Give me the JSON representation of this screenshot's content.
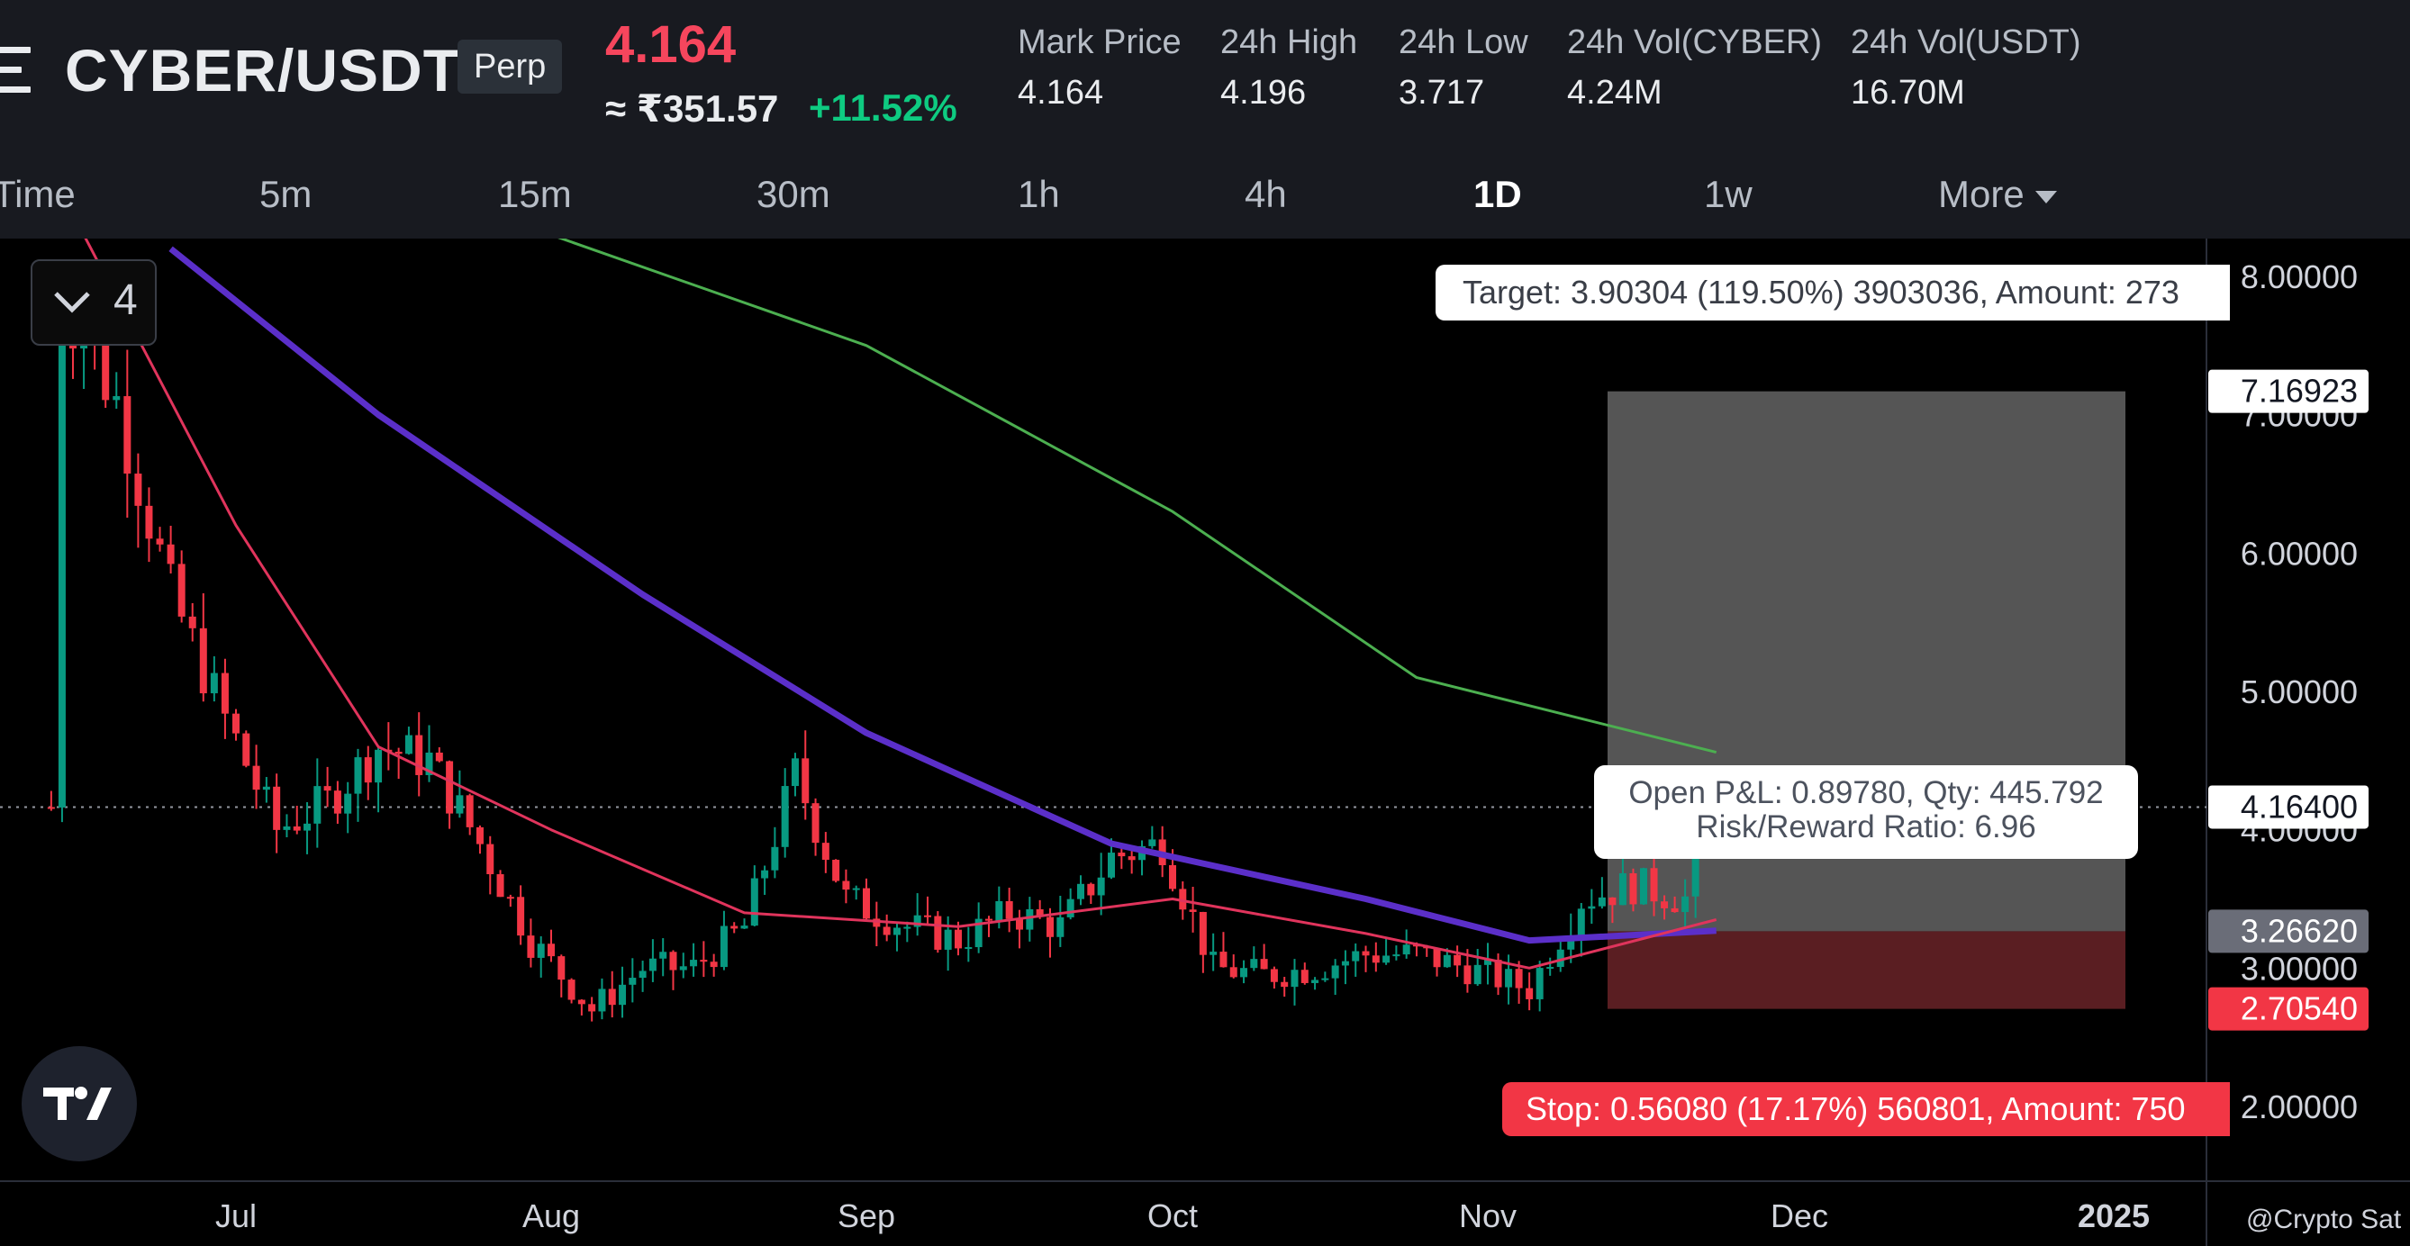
{
  "header": {
    "pair": "CYBER/USDT",
    "contract_type": "Perp",
    "last_price": "4.164",
    "inr_price": "≈ ₹351.57",
    "change_pct": "+11.52%",
    "stats": [
      {
        "label": "Mark Price",
        "value": "4.164"
      },
      {
        "label": "24h High",
        "value": "4.196"
      },
      {
        "label": "24h Low",
        "value": "3.717"
      },
      {
        "label": "24h Vol(CYBER)",
        "value": "4.24M"
      },
      {
        "label": "24h Vol(USDT)",
        "value": "16.70M"
      }
    ]
  },
  "timeframes": {
    "items": [
      "Time",
      "5m",
      "15m",
      "30m",
      "1h",
      "4h",
      "1D",
      "1w",
      "More"
    ],
    "active": "1D"
  },
  "chart": {
    "indicator_count": "4",
    "price_axis": [
      "8.00000",
      "7.00000",
      "6.00000",
      "5.00000",
      "4.00000",
      "3.00000",
      "2.00000"
    ],
    "time_axis": [
      "Jul",
      "Aug",
      "Sep",
      "Oct",
      "Nov",
      "Dec",
      "2025"
    ],
    "tags": {
      "target": "7.16923",
      "last": "4.16400",
      "entry": "3.26620",
      "stop": "2.70540"
    },
    "target_label": "Target: 3.90304 (119.50%) 3903036, Amount: 273",
    "stop_label": "Stop: 0.56080 (17.17%) 560801, Amount: 750",
    "pnl_line1": "Open P&L: 0.89780, Qty: 445.792",
    "pnl_line2": "Risk/Reward Ratio: 6.96",
    "watermark": "@Crypto Sat"
  },
  "colors": {
    "up": "#089981",
    "down": "#f23645",
    "ma_short": "#e0345c",
    "ma_mid": "#5b2fc9",
    "ma_long": "#4caf50",
    "reward_zone": "#5a5a5a",
    "risk_zone": "#5a1e22"
  },
  "chart_data": {
    "type": "candlestick",
    "title": "CYBER/USDT Perp 1D",
    "ylim": [
      1.6,
      8.4
    ],
    "x_ticks": [
      "Jul",
      "Aug",
      "Sep",
      "Oct",
      "Nov",
      "Dec",
      "2025"
    ],
    "x_range": [
      "2024-06-14",
      "2025-01-05"
    ],
    "series": [
      {
        "name": "price",
        "approx_closes": [
          {
            "date": "2024-06-15",
            "close": 7.9
          },
          {
            "date": "2024-06-20",
            "close": 7.1
          },
          {
            "date": "2024-06-25",
            "close": 5.7
          },
          {
            "date": "2024-06-30",
            "close": 4.8
          },
          {
            "date": "2024-07-05",
            "close": 4.0
          },
          {
            "date": "2024-07-10",
            "close": 4.2
          },
          {
            "date": "2024-07-15",
            "close": 4.6
          },
          {
            "date": "2024-07-20",
            "close": 4.5
          },
          {
            "date": "2024-07-25",
            "close": 3.9
          },
          {
            "date": "2024-07-30",
            "close": 3.2
          },
          {
            "date": "2024-08-05",
            "close": 2.7
          },
          {
            "date": "2024-08-10",
            "close": 3.0
          },
          {
            "date": "2024-08-15",
            "close": 3.0
          },
          {
            "date": "2024-08-20",
            "close": 3.3
          },
          {
            "date": "2024-08-25",
            "close": 4.4
          },
          {
            "date": "2024-08-30",
            "close": 3.5
          },
          {
            "date": "2024-09-05",
            "close": 3.3
          },
          {
            "date": "2024-09-10",
            "close": 3.2
          },
          {
            "date": "2024-09-15",
            "close": 3.4
          },
          {
            "date": "2024-09-20",
            "close": 3.3
          },
          {
            "date": "2024-09-25",
            "close": 3.8
          },
          {
            "date": "2024-09-30",
            "close": 3.9
          },
          {
            "date": "2024-10-05",
            "close": 3.0
          },
          {
            "date": "2024-10-10",
            "close": 2.95
          },
          {
            "date": "2024-10-15",
            "close": 3.0
          },
          {
            "date": "2024-10-20",
            "close": 3.1
          },
          {
            "date": "2024-10-25",
            "close": 3.1
          },
          {
            "date": "2024-10-30",
            "close": 3.0
          },
          {
            "date": "2024-11-05",
            "close": 2.85
          },
          {
            "date": "2024-11-10",
            "close": 3.5
          },
          {
            "date": "2024-11-15",
            "close": 3.6
          },
          {
            "date": "2024-11-20",
            "close": 3.5
          },
          {
            "date": "2024-11-23",
            "close": 4.164
          }
        ]
      },
      {
        "name": "MA short",
        "values": [
          {
            "date": "2024-06-15",
            "value": 8.6
          },
          {
            "date": "2024-07-01",
            "value": 6.2
          },
          {
            "date": "2024-07-15",
            "value": 4.6
          },
          {
            "date": "2024-08-01",
            "value": 4.0
          },
          {
            "date": "2024-08-20",
            "value": 3.4
          },
          {
            "date": "2024-09-10",
            "value": 3.3
          },
          {
            "date": "2024-10-01",
            "value": 3.5
          },
          {
            "date": "2024-10-20",
            "value": 3.25
          },
          {
            "date": "2024-11-05",
            "value": 3.0
          },
          {
            "date": "2024-11-23",
            "value": 3.35
          }
        ]
      },
      {
        "name": "MA mid",
        "values": [
          {
            "date": "2024-06-25",
            "value": 8.2
          },
          {
            "date": "2024-07-15",
            "value": 7.0
          },
          {
            "date": "2024-08-10",
            "value": 5.7
          },
          {
            "date": "2024-09-01",
            "value": 4.7
          },
          {
            "date": "2024-09-25",
            "value": 3.9
          },
          {
            "date": "2024-10-20",
            "value": 3.5
          },
          {
            "date": "2024-11-05",
            "value": 3.2
          },
          {
            "date": "2024-11-23",
            "value": 3.27
          }
        ]
      },
      {
        "name": "MA long",
        "values": [
          {
            "date": "2024-08-01",
            "value": 8.3
          },
          {
            "date": "2024-09-01",
            "value": 7.5
          },
          {
            "date": "2024-10-01",
            "value": 6.3
          },
          {
            "date": "2024-10-25",
            "value": 5.1
          },
          {
            "date": "2024-11-23",
            "value": 4.56
          }
        ]
      }
    ],
    "position": {
      "entry": 3.2662,
      "target": 7.16923,
      "stop": 2.7054,
      "last": 4.164
    },
    "xlabel": "",
    "ylabel": ""
  }
}
